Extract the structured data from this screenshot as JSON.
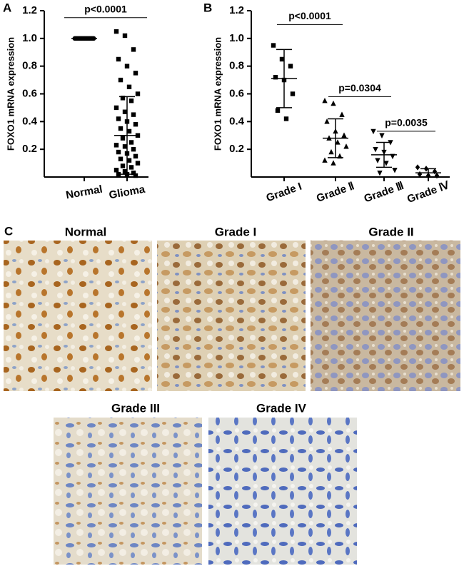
{
  "chart_data": [
    {
      "type": "dotplot",
      "panel": "A",
      "ylabel": "FOXO1 mRNA expression",
      "ylim": [
        0,
        1.2
      ],
      "yticks": [
        0.2,
        0.4,
        0.6,
        0.8,
        {
          "value": 1,
          "label": "1.0"
        },
        1.2
      ],
      "groups": [
        {
          "name": "Normal",
          "marker": "circle",
          "values": [
            1,
            1,
            1,
            1,
            1,
            1,
            1,
            1,
            1,
            1,
            1,
            1,
            1,
            1,
            1,
            1,
            1,
            1,
            1,
            1
          ],
          "mean": 1,
          "sd": 0
        },
        {
          "name": "Glioma",
          "marker": "square",
          "values": [
            1.05,
            1.02,
            0.92,
            0.85,
            0.8,
            0.75,
            0.7,
            0.65,
            0.6,
            0.57,
            0.55,
            0.5,
            0.47,
            0.45,
            0.42,
            0.4,
            0.38,
            0.35,
            0.33,
            0.3,
            0.28,
            0.25,
            0.23,
            0.22,
            0.2,
            0.18,
            0.17,
            0.15,
            0.13,
            0.12,
            0.1,
            0.08,
            0.07,
            0.05,
            0.04,
            0.03,
            0.02,
            0.02,
            0.01
          ],
          "mean": 0.3,
          "sd": 0.28
        }
      ],
      "comparisons": [
        "p<0.0001"
      ]
    },
    {
      "type": "dotplot",
      "panel": "B",
      "ylabel": "FOXO1 mRNA expression",
      "ylim": [
        0,
        1.2
      ],
      "yticks": [
        0.2,
        0.4,
        0.6,
        0.8,
        {
          "value": 1,
          "label": "1.0"
        },
        1.2
      ],
      "groups": [
        {
          "name": "Grade I",
          "marker": "square",
          "values": [
            0.95,
            0.85,
            0.8,
            0.72,
            0.7,
            0.6,
            0.48,
            0.42
          ],
          "mean": 0.71,
          "sd": 0.21
        },
        {
          "name": "Grade Ⅱ",
          "marker": "triangle-up",
          "values": [
            0.55,
            0.53,
            0.45,
            0.4,
            0.33,
            0.3,
            0.28,
            0.25,
            0.22,
            0.18,
            0.15,
            0.12,
            0.1
          ],
          "mean": 0.28,
          "sd": 0.14
        },
        {
          "name": "Grade Ⅲ",
          "marker": "triangle-down",
          "values": [
            0.33,
            0.3,
            0.25,
            0.2,
            0.18,
            0.15,
            0.12,
            0.1,
            0.05,
            0.03
          ],
          "mean": 0.16,
          "sd": 0.09
        },
        {
          "name": "Grade Ⅳ",
          "marker": "diamond",
          "values": [
            0.07,
            0.06,
            0.04,
            0.02,
            0.01,
            0.01
          ],
          "mean": 0.03,
          "sd": 0.03
        }
      ],
      "comparisons": [
        "p<0.0001",
        "p=0.0304",
        "p=0.0035"
      ]
    }
  ],
  "images": {
    "panel": "C",
    "titles": [
      "Normal",
      "Grade I",
      "Grade II",
      "Grade III",
      "Grade IV"
    ]
  }
}
